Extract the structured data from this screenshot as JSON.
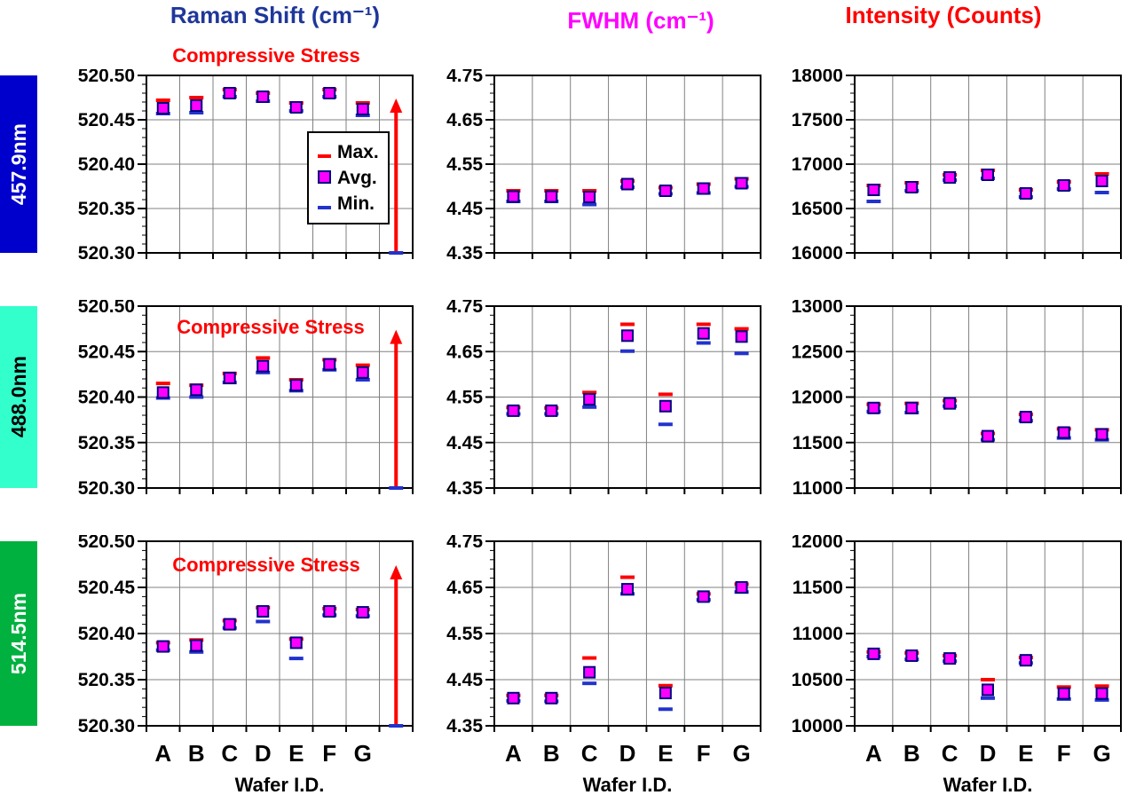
{
  "figure": {
    "background": "#ffffff"
  },
  "columns": [
    {
      "title": "Raman Shift (cm⁻¹)",
      "color": "#1f3799"
    },
    {
      "title": "FWHM (cm⁻¹)",
      "color": "#ff00ff"
    },
    {
      "title": "Intensity (Counts)",
      "color": "#ff0000"
    }
  ],
  "rows": [
    {
      "label": "457.9nm",
      "bg": "#0000cc",
      "fg": "#ffffff"
    },
    {
      "label": "488.0nm",
      "bg": "#33ffcc",
      "fg": "#000000"
    },
    {
      "label": "514.5nm",
      "bg": "#00b140",
      "fg": "#ffffff"
    }
  ],
  "xlabel": "Wafer I.D.",
  "categories": [
    "A",
    "B",
    "C",
    "D",
    "E",
    "F",
    "G"
  ],
  "annotation": {
    "text": "Compressive Stress",
    "color": "#ff0000"
  },
  "legend": {
    "items": [
      {
        "label": "Max.",
        "marker": "max-dash"
      },
      {
        "label": "Avg.",
        "marker": "avg-square"
      },
      {
        "label": "Min.",
        "marker": "min-dash"
      }
    ]
  },
  "markers": {
    "max_color": "#ff0000",
    "avg_fill": "#ff00ff",
    "avg_border": "#000080",
    "min_color": "#2233cc",
    "grid_color": "#808080"
  },
  "chart_data": [
    {
      "type": "scatter",
      "wavelength": "457.9nm",
      "measure": "Raman Shift (cm⁻¹)",
      "categories": [
        "A",
        "B",
        "C",
        "D",
        "E",
        "F",
        "G"
      ],
      "ylim": [
        520.3,
        520.5
      ],
      "ytick_step": 0.05,
      "ytick_minor": 0.01,
      "decimals": 2,
      "stress_arrow": true,
      "grid": true,
      "legend": true,
      "series": [
        {
          "name": "Max.",
          "values": [
            520.472,
            520.475,
            520.484,
            520.48,
            520.469,
            520.484,
            520.469
          ]
        },
        {
          "name": "Avg.",
          "values": [
            520.463,
            520.466,
            520.48,
            520.476,
            520.464,
            520.48,
            520.462
          ]
        },
        {
          "name": "Min.",
          "values": [
            520.457,
            520.458,
            520.476,
            520.471,
            520.46,
            520.476,
            520.455
          ]
        }
      ]
    },
    {
      "type": "scatter",
      "wavelength": "457.9nm",
      "measure": "FWHM (cm⁻¹)",
      "categories": [
        "A",
        "B",
        "C",
        "D",
        "E",
        "F",
        "G"
      ],
      "ylim": [
        4.35,
        4.75
      ],
      "ytick_step": 0.1,
      "ytick_minor": 0.02,
      "decimals": 2,
      "stress_arrow": false,
      "grid": true,
      "legend": false,
      "series": [
        {
          "name": "Max.",
          "values": [
            4.49,
            4.49,
            4.49,
            4.512,
            4.497,
            4.505,
            4.517
          ]
        },
        {
          "name": "Avg.",
          "values": [
            4.477,
            4.477,
            4.476,
            4.505,
            4.49,
            4.495,
            4.507
          ]
        },
        {
          "name": "Min.",
          "values": [
            4.466,
            4.466,
            4.459,
            4.498,
            4.483,
            4.485,
            4.499
          ]
        }
      ]
    },
    {
      "type": "scatter",
      "wavelength": "457.9nm",
      "measure": "Intensity (Counts)",
      "categories": [
        "A",
        "B",
        "C",
        "D",
        "E",
        "F",
        "G"
      ],
      "ylim": [
        16000,
        18000
      ],
      "ytick_step": 500,
      "ytick_minor": 100,
      "decimals": 0,
      "stress_arrow": false,
      "grid": true,
      "legend": false,
      "series": [
        {
          "name": "Max.",
          "values": [
            16760,
            16790,
            16880,
            16930,
            16710,
            16800,
            16890
          ]
        },
        {
          "name": "Avg.",
          "values": [
            16710,
            16740,
            16850,
            16880,
            16670,
            16760,
            16810
          ]
        },
        {
          "name": "Min.",
          "values": [
            16580,
            16700,
            16820,
            16840,
            16630,
            16720,
            16680
          ]
        }
      ]
    },
    {
      "type": "scatter",
      "wavelength": "488.0nm",
      "measure": "Raman Shift (cm⁻¹)",
      "categories": [
        "A",
        "B",
        "C",
        "D",
        "E",
        "F",
        "G"
      ],
      "ylim": [
        520.3,
        520.5
      ],
      "ytick_step": 0.05,
      "ytick_minor": 0.01,
      "decimals": 2,
      "stress_arrow": true,
      "grid": true,
      "legend": false,
      "series": [
        {
          "name": "Max.",
          "values": [
            520.415,
            520.413,
            520.426,
            520.443,
            520.419,
            520.441,
            520.435
          ]
        },
        {
          "name": "Avg.",
          "values": [
            520.405,
            520.408,
            520.421,
            520.434,
            520.413,
            520.436,
            520.427
          ]
        },
        {
          "name": "Min.",
          "values": [
            520.399,
            520.4,
            520.416,
            520.427,
            520.407,
            520.43,
            520.419
          ]
        }
      ]
    },
    {
      "type": "scatter",
      "wavelength": "488.0nm",
      "measure": "FWHM (cm⁻¹)",
      "categories": [
        "A",
        "B",
        "C",
        "D",
        "E",
        "F",
        "G"
      ],
      "ylim": [
        4.35,
        4.75
      ],
      "ytick_step": 0.1,
      "ytick_minor": 0.02,
      "decimals": 2,
      "stress_arrow": false,
      "grid": true,
      "legend": false,
      "series": [
        {
          "name": "Max.",
          "values": [
            4.527,
            4.526,
            4.56,
            4.71,
            4.556,
            4.71,
            4.7
          ]
        },
        {
          "name": "Avg.",
          "values": [
            4.52,
            4.52,
            4.545,
            4.685,
            4.53,
            4.69,
            4.683
          ]
        },
        {
          "name": "Min.",
          "values": [
            4.513,
            4.513,
            4.528,
            4.651,
            4.49,
            4.669,
            4.646
          ]
        }
      ]
    },
    {
      "type": "scatter",
      "wavelength": "488.0nm",
      "measure": "Intensity (Counts)",
      "categories": [
        "A",
        "B",
        "C",
        "D",
        "E",
        "F",
        "G"
      ],
      "ylim": [
        11000,
        13000
      ],
      "ytick_step": 500,
      "ytick_minor": 100,
      "decimals": 0,
      "stress_arrow": false,
      "grid": true,
      "legend": false,
      "series": [
        {
          "name": "Max.",
          "values": [
            11920,
            11930,
            11960,
            11600,
            11810,
            11650,
            11640
          ]
        },
        {
          "name": "Avg.",
          "values": [
            11880,
            11880,
            11930,
            11570,
            11780,
            11610,
            11590
          ]
        },
        {
          "name": "Min.",
          "values": [
            11840,
            11830,
            11900,
            11530,
            11740,
            11550,
            11530
          ]
        }
      ]
    },
    {
      "type": "scatter",
      "wavelength": "514.5nm",
      "measure": "Raman Shift (cm⁻¹)",
      "categories": [
        "A",
        "B",
        "C",
        "D",
        "E",
        "F",
        "G"
      ],
      "ylim": [
        520.3,
        520.5
      ],
      "ytick_step": 0.05,
      "ytick_minor": 0.01,
      "decimals": 2,
      "stress_arrow": true,
      "grid": true,
      "legend": false,
      "series": [
        {
          "name": "Max.",
          "values": [
            520.39,
            520.393,
            520.414,
            520.428,
            520.394,
            520.427,
            520.426
          ]
        },
        {
          "name": "Avg.",
          "values": [
            520.386,
            520.387,
            520.41,
            520.424,
            520.39,
            520.424,
            520.423
          ]
        },
        {
          "name": "Min.",
          "values": [
            520.382,
            520.38,
            520.406,
            520.413,
            520.373,
            520.42,
            520.419
          ]
        }
      ]
    },
    {
      "type": "scatter",
      "wavelength": "514.5nm",
      "measure": "FWHM (cm⁻¹)",
      "categories": [
        "A",
        "B",
        "C",
        "D",
        "E",
        "F",
        "G"
      ],
      "ylim": [
        4.35,
        4.75
      ],
      "ytick_step": 0.1,
      "ytick_minor": 0.02,
      "decimals": 2,
      "stress_arrow": false,
      "grid": true,
      "legend": false,
      "series": [
        {
          "name": "Max.",
          "values": [
            4.416,
            4.416,
            4.497,
            4.672,
            4.437,
            4.636,
            4.657
          ]
        },
        {
          "name": "Avg.",
          "values": [
            4.41,
            4.41,
            4.466,
            4.646,
            4.421,
            4.63,
            4.65
          ]
        },
        {
          "name": "Min.",
          "values": [
            4.404,
            4.403,
            4.442,
            4.636,
            4.386,
            4.623,
            4.64
          ]
        }
      ]
    },
    {
      "type": "scatter",
      "wavelength": "514.5nm",
      "measure": "Intensity (Counts)",
      "categories": [
        "A",
        "B",
        "C",
        "D",
        "E",
        "F",
        "G"
      ],
      "ylim": [
        10000,
        12000
      ],
      "ytick_step": 500,
      "ytick_minor": 100,
      "decimals": 0,
      "stress_arrow": false,
      "grid": true,
      "legend": false,
      "series": [
        {
          "name": "Max.",
          "values": [
            10800,
            10790,
            10760,
            10500,
            10740,
            10420,
            10430
          ]
        },
        {
          "name": "Avg.",
          "values": [
            10780,
            10760,
            10730,
            10390,
            10710,
            10350,
            10350
          ]
        },
        {
          "name": "Min.",
          "values": [
            10750,
            10720,
            10700,
            10300,
            10680,
            10290,
            10280
          ]
        }
      ]
    }
  ]
}
